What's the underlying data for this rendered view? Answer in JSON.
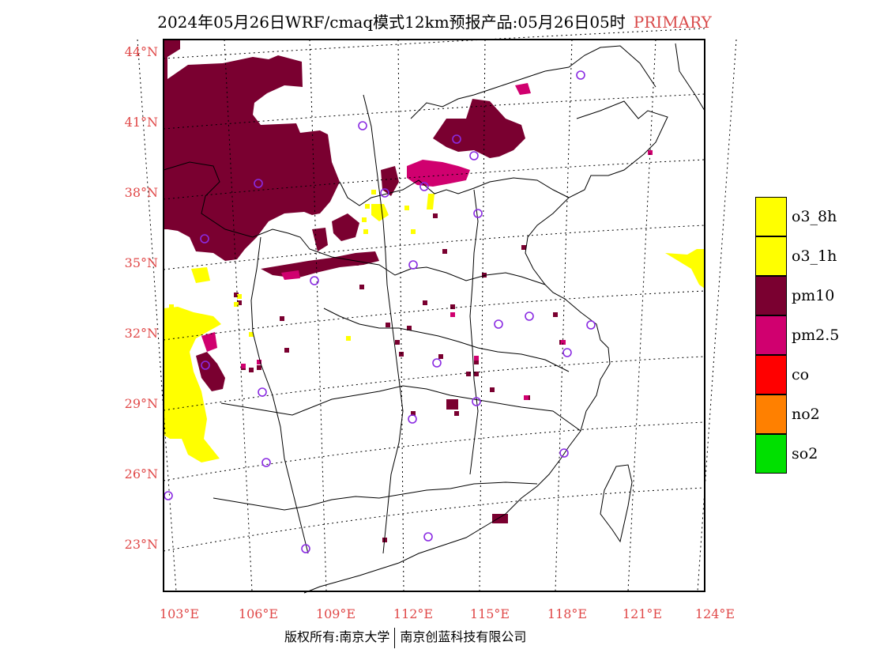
{
  "header": {
    "title": "2024年05月26日WRF/cmaq模式12km预报产品:05月26日05时",
    "tag": "PRIMARY"
  },
  "map": {
    "lat_labels": [
      "44°N",
      "41°N",
      "38°N",
      "35°N",
      "32°N",
      "29°N",
      "26°N",
      "23°N"
    ],
    "lon_labels": [
      "103°E",
      "106°E",
      "109°E",
      "112°E",
      "115°E",
      "118°E",
      "121°E",
      "124°E"
    ],
    "colors": {
      "o3_8h": "#ffff00",
      "o3_1h": "#ffff00",
      "pm10": "#7a0030",
      "pm2_5": "#d0006f",
      "co": "#ff0000",
      "no2": "#ff8000",
      "so2": "#00e000",
      "station": "#8a2be2",
      "boundary": "#000000",
      "axis_label": "#e04848"
    },
    "station_marker": "circle"
  },
  "legend": {
    "items": [
      {
        "label": "o3_8h",
        "color": "#ffff00"
      },
      {
        "label": "o3_1h",
        "color": "#ffff00"
      },
      {
        "label": "pm10",
        "color": "#7a0030"
      },
      {
        "label": "pm2.5",
        "color": "#d0006f"
      },
      {
        "label": "co",
        "color": "#ff0000"
      },
      {
        "label": "no2",
        "color": "#ff8000"
      },
      {
        "label": "so2",
        "color": "#00e000"
      }
    ]
  },
  "footer": {
    "left": "版权所有:南京大学",
    "right": "南京创蓝科技有限公司"
  }
}
